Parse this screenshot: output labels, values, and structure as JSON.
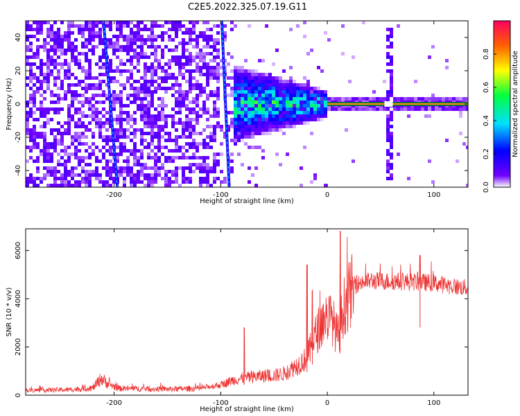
{
  "figure": {
    "title": "C2E5.2022.325.07.19.G11"
  },
  "chart_data": [
    {
      "type": "heatmap",
      "xlabel": "Height of straight line (km)",
      "ylabel": "Frequency (Hz)",
      "xlim": [
        -283,
        132
      ],
      "ylim": [
        -50,
        50
      ],
      "xticks": [
        -200,
        -100,
        0,
        100
      ],
      "xtick_labels": [
        "-200",
        "-100",
        "0",
        "100"
      ],
      "yticks": [
        -40,
        -20,
        0,
        20,
        40
      ],
      "ytick_labels": [
        "-40",
        "-20",
        "0",
        "20",
        "40"
      ],
      "colorbar": {
        "label": "Normalized spectral amplitude",
        "range": [
          0.0,
          1.0
        ],
        "ticks": [
          0.0,
          0.2,
          0.4,
          0.6,
          0.8
        ],
        "tick_labels": [
          "0.0",
          "0.2",
          "0.4",
          "0.6",
          "0.8"
        ],
        "colors": [
          "#ffffff",
          "#7000ff",
          "#0000ff",
          "#00e0ff",
          "#00ff40",
          "#ffff00",
          "#ff6000",
          "#ff0060"
        ]
      },
      "features": {
        "carrier_line": {
          "x_from": 0,
          "x_to": 132,
          "frequency": 0,
          "amplitude": 0.85
        },
        "tilted_streaks": [
          {
            "x_at_top": -210,
            "x_at_bottom": -197
          },
          {
            "x_at_top": -99,
            "x_at_bottom": -92
          }
        ],
        "noise_region_end_x": -100,
        "burst_x": [
          54,
          61
        ]
      },
      "grid": false,
      "color": "#7b2cf0"
    },
    {
      "type": "line",
      "xlabel": "Height of straight line (km)",
      "ylabel": "SNR (10 * v/v)",
      "xlim": [
        -283,
        132
      ],
      "ylim": [
        0,
        6900
      ],
      "xticks": [
        -200,
        -100,
        0,
        100
      ],
      "xtick_labels": [
        "-200",
        "-100",
        "0",
        "100"
      ],
      "yticks": [
        0,
        2000,
        4000,
        6000
      ],
      "ytick_labels": [
        "0",
        "2000",
        "4000",
        "6000"
      ],
      "grid": false,
      "color": "#ee3333",
      "envelope": {
        "x": [
          -283,
          -240,
          -220,
          -212,
          -205,
          -195,
          -150,
          -120,
          -100,
          -90,
          -80,
          -70,
          -60,
          -50,
          -40,
          -30,
          -20,
          -15,
          -10,
          -5,
          0,
          5,
          10,
          15,
          20,
          25,
          30,
          40,
          60,
          80,
          100,
          120,
          132
        ],
        "y": [
          200,
          230,
          300,
          700,
          450,
          280,
          250,
          280,
          430,
          600,
          700,
          750,
          800,
          820,
          900,
          1200,
          1500,
          2000,
          2600,
          3000,
          3300,
          3100,
          2400,
          3600,
          4100,
          4500,
          4650,
          4750,
          4720,
          4700,
          4650,
          4500,
          4450
        ]
      },
      "peaks": [
        {
          "x": 12,
          "y": 6800
        },
        {
          "x": -14,
          "y": 4350
        },
        {
          "x": -19,
          "y": 5400
        },
        {
          "x": -78,
          "y": 2800
        },
        {
          "x": 87,
          "y": 5800
        }
      ]
    }
  ]
}
